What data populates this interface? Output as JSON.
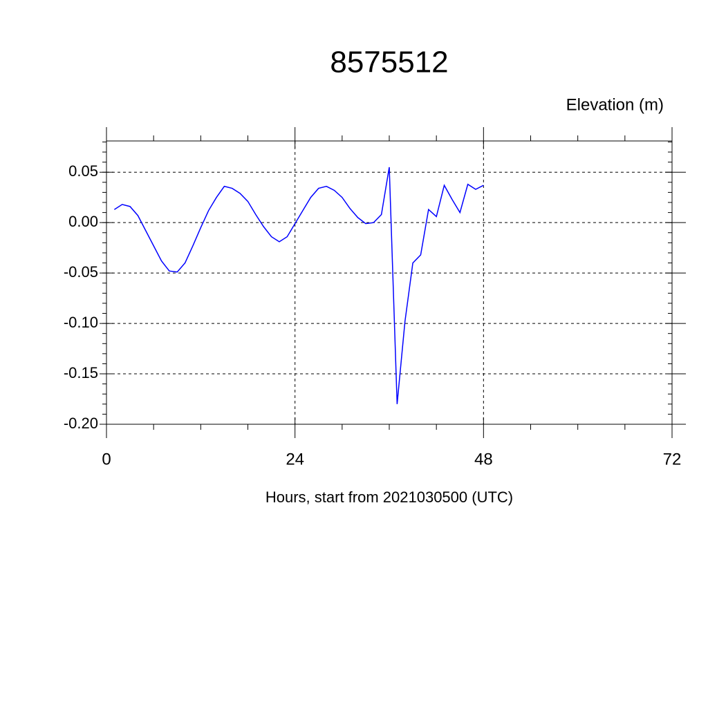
{
  "chart_data": {
    "type": "line",
    "title": "8575512",
    "subtitle": "Elevation (m)",
    "x_label": "Hours, start from 2021030500 (UTC)",
    "x": [
      1,
      2,
      3,
      4,
      5,
      6,
      7,
      8,
      9,
      10,
      11,
      12,
      13,
      14,
      15,
      16,
      17,
      18,
      19,
      20,
      21,
      22,
      23,
      24,
      25,
      26,
      27,
      28,
      29,
      30,
      31,
      32,
      33,
      34,
      35,
      36,
      37,
      38,
      39,
      40,
      41,
      42,
      43,
      44,
      45,
      46,
      47,
      48
    ],
    "series": [
      {
        "color": "#0000ff",
        "values": [
          0.013,
          0.018,
          0.016,
          0.007,
          -0.008,
          -0.023,
          -0.038,
          -0.048,
          -0.049,
          -0.04,
          -0.023,
          -0.005,
          0.012,
          0.025,
          0.036,
          0.034,
          0.029,
          0.021,
          0.008,
          -0.004,
          -0.014,
          -0.019,
          -0.014,
          -0.001,
          0.012,
          0.025,
          0.034,
          0.036,
          0.032,
          0.025,
          0.014,
          0.005,
          -0.001,
          0.0,
          0.008,
          0.055,
          -0.18,
          -0.098,
          -0.04,
          -0.032,
          0.013,
          0.006,
          0.037,
          0.023,
          0.01,
          0.038,
          0.033,
          0.037
        ]
      }
    ],
    "xlim": [
      0,
      72
    ],
    "xticks": [
      0,
      24,
      48,
      72
    ],
    "ylim": [
      -0.2,
      0.081
    ],
    "yticks": [
      0.05,
      {
        "value": 0,
        "label": "0.00"
      },
      -0.05,
      {
        "value": -0.1,
        "label": "-0.10"
      },
      -0.15,
      {
        "value": -0.2,
        "label": "-0.20"
      }
    ],
    "grid": true
  }
}
